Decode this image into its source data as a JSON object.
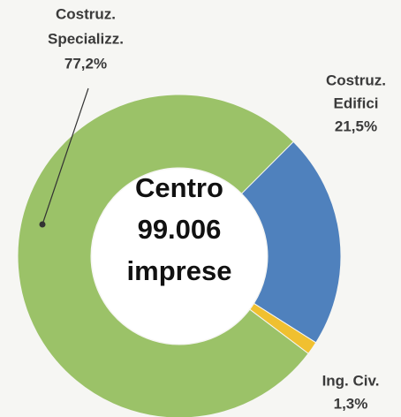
{
  "chart_data": {
    "type": "donut",
    "categories": [
      [
        "Costruz.",
        "Specializz."
      ],
      [
        "Costruz.",
        "Edifici"
      ],
      [
        "Ing. Civ."
      ]
    ],
    "values": [
      77.2,
      21.5,
      1.3
    ],
    "value_labels": [
      "77,2%",
      "21,5%",
      "1,3%"
    ],
    "colors": [
      "#9bc268",
      "#4f81bd",
      "#f0c030"
    ],
    "center_text": [
      "Centro",
      "99.006",
      "imprese"
    ]
  }
}
